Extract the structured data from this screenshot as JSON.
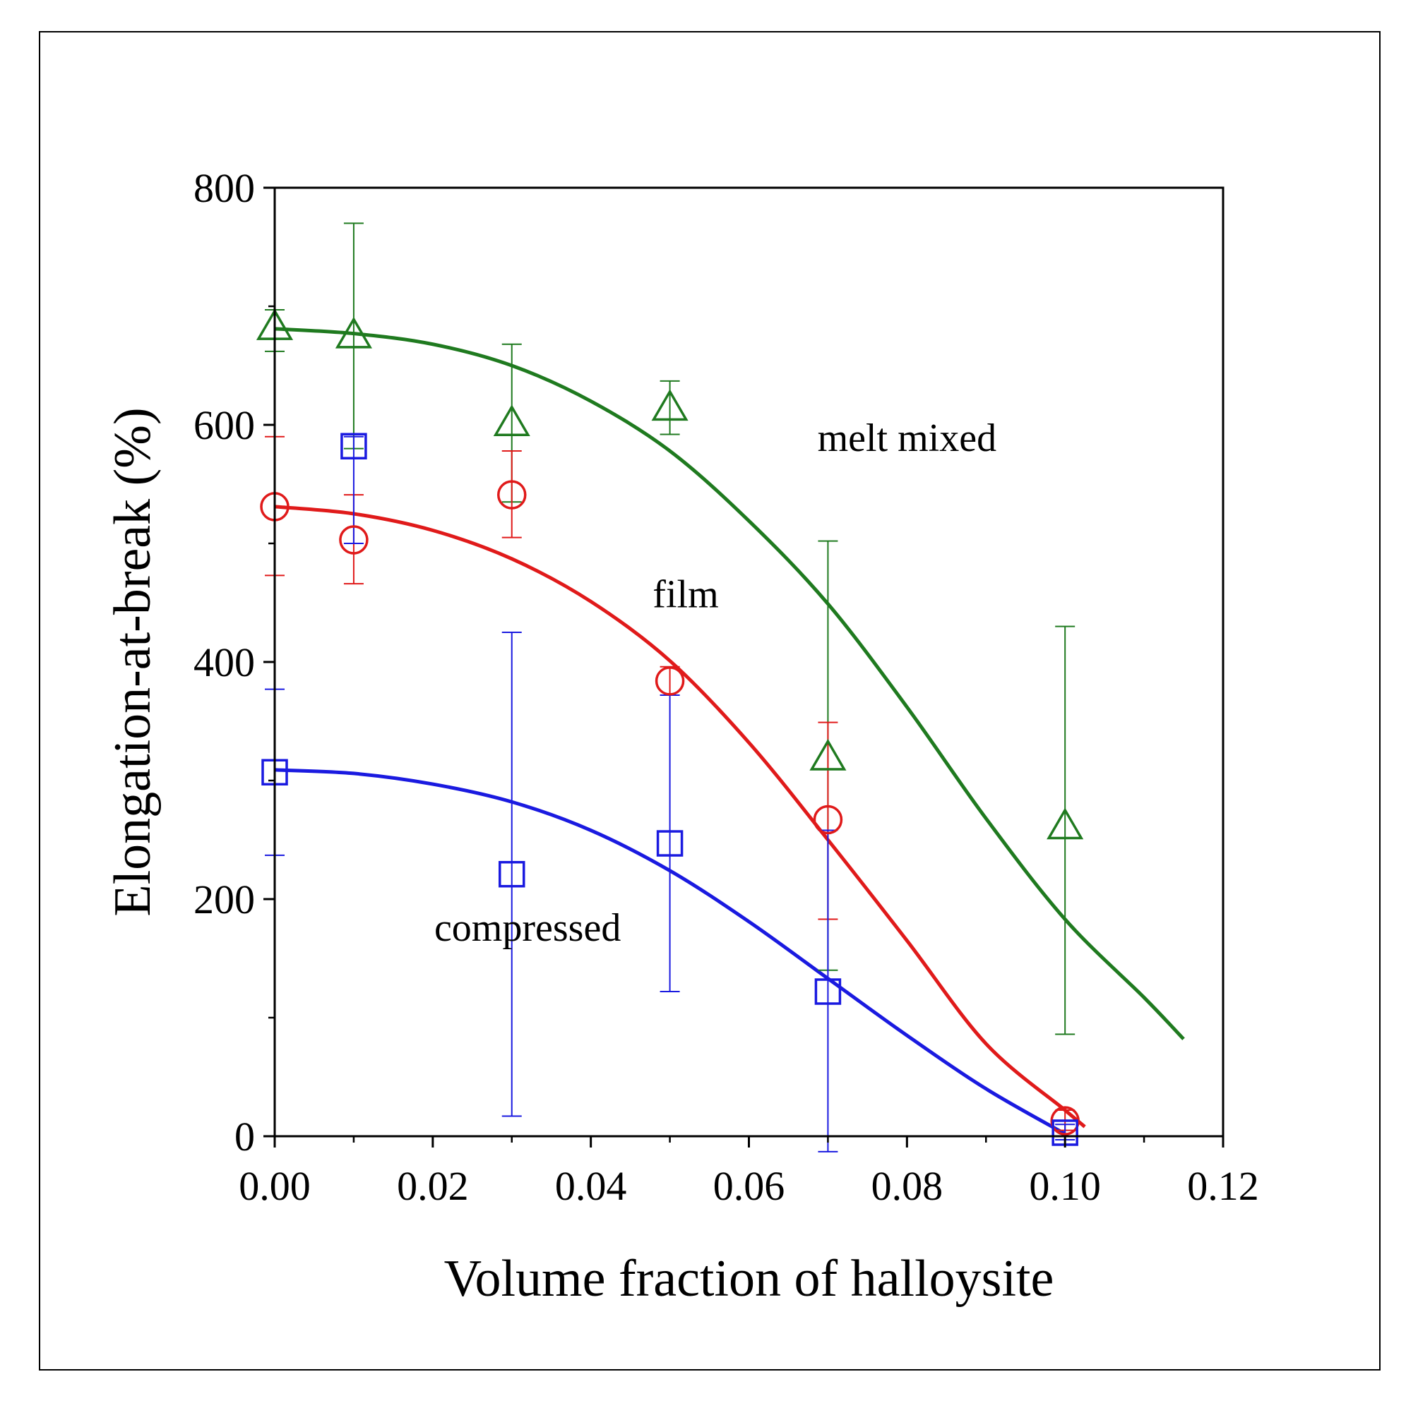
{
  "chart_data": {
    "type": "scatter",
    "xlabel": "Volume fraction of halloysite",
    "ylabel": "Elongation-at-break (%)",
    "xlim": [
      0,
      0.12
    ],
    "ylim": [
      0,
      800
    ],
    "xticks": [
      0.0,
      0.02,
      0.04,
      0.06,
      0.08,
      0.1,
      0.12
    ],
    "xtick_labels": [
      "0.00",
      "0.02",
      "0.04",
      "0.06",
      "0.08",
      "0.10",
      "0.12"
    ],
    "yticks": [
      0,
      200,
      400,
      600,
      800
    ],
    "ytick_labels": [
      "0",
      "200",
      "400",
      "600",
      "800"
    ],
    "grid": false,
    "series": [
      {
        "name": "melt mixed",
        "color": "#1f7a1f",
        "marker": "triangle",
        "points": [
          {
            "x": 0.0,
            "y": 683,
            "err_low": 662,
            "err_high": 697
          },
          {
            "x": 0.01,
            "y": 676,
            "err_low": 580,
            "err_high": 770
          },
          {
            "x": 0.03,
            "y": 602,
            "err_low": 535,
            "err_high": 668
          },
          {
            "x": 0.05,
            "y": 615,
            "err_low": 592,
            "err_high": 637
          },
          {
            "x": 0.07,
            "y": 320,
            "err_low": 140,
            "err_high": 502
          },
          {
            "x": 0.1,
            "y": 262,
            "err_low": 86,
            "err_high": 430
          }
        ],
        "fit": {
          "x": [
            0,
            0.01,
            0.02,
            0.03,
            0.04,
            0.05,
            0.06,
            0.07,
            0.08,
            0.09,
            0.1,
            0.11,
            0.115
          ],
          "y": [
            681,
            677,
            668,
            650,
            620,
            578,
            519,
            449,
            362,
            268,
            183,
            117,
            82
          ]
        }
      },
      {
        "name": "film",
        "color": "#e01a1a",
        "marker": "circle",
        "points": [
          {
            "x": 0.0,
            "y": 531,
            "err_low": 473,
            "err_high": 590
          },
          {
            "x": 0.01,
            "y": 503,
            "err_low": 466,
            "err_high": 541
          },
          {
            "x": 0.03,
            "y": 541,
            "err_low": 505,
            "err_high": 578
          },
          {
            "x": 0.05,
            "y": 384,
            "err_low": 372,
            "err_high": 396
          },
          {
            "x": 0.07,
            "y": 267,
            "err_low": 183,
            "err_high": 349
          },
          {
            "x": 0.1,
            "y": 13,
            "err_low": 5,
            "err_high": 22
          }
        ],
        "fit": {
          "x": [
            0,
            0.01,
            0.02,
            0.03,
            0.04,
            0.05,
            0.06,
            0.07,
            0.08,
            0.09,
            0.1,
            0.1025
          ],
          "y": [
            531,
            525,
            511,
            487,
            451,
            401,
            332,
            250,
            165,
            78,
            22,
            8
          ]
        }
      },
      {
        "name": "compressed",
        "color": "#1a1ae0",
        "marker": "square",
        "points": [
          {
            "x": 0.0,
            "y": 307,
            "err_low": 237,
            "err_high": 377
          },
          {
            "x": 0.01,
            "y": 582,
            "err_low": 500,
            "err_high": 590
          },
          {
            "x": 0.03,
            "y": 221,
            "err_low": 17,
            "err_high": 425
          },
          {
            "x": 0.05,
            "y": 247,
            "err_low": 122,
            "err_high": 372
          },
          {
            "x": 0.07,
            "y": 122,
            "err_low": -13,
            "err_high": 258
          },
          {
            "x": 0.1,
            "y": 3,
            "err_low": -3,
            "err_high": 10
          }
        ],
        "fit": {
          "x": [
            0,
            0.01,
            0.02,
            0.03,
            0.04,
            0.05,
            0.06,
            0.07,
            0.08,
            0.09,
            0.1
          ],
          "y": [
            309,
            306,
            297,
            282,
            258,
            224,
            181,
            133,
            85,
            40,
            2
          ]
        }
      }
    ],
    "annotations": [
      {
        "text": "melt mixed",
        "x": 0.08,
        "y": 578
      },
      {
        "text": "film",
        "x": 0.052,
        "y": 446
      },
      {
        "text": "compressed",
        "x": 0.032,
        "y": 165
      }
    ]
  }
}
